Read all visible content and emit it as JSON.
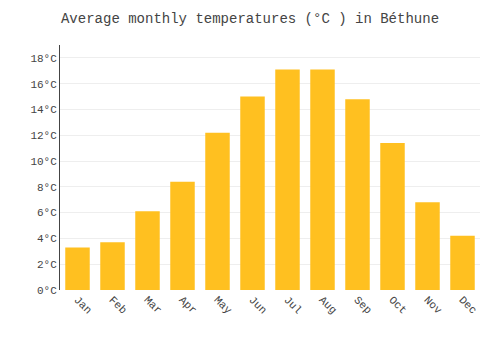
{
  "chart_data": {
    "type": "bar",
    "title": "Average monthly temperatures (°C ) in Béthune",
    "categories": [
      "Jan",
      "Feb",
      "Mar",
      "Apr",
      "May",
      "Jun",
      "Jul",
      "Aug",
      "Sep",
      "Oct",
      "Nov",
      "Dec"
    ],
    "values": [
      3.3,
      3.7,
      6.1,
      8.4,
      12.2,
      15.0,
      17.1,
      17.1,
      14.8,
      11.4,
      6.8,
      4.2
    ],
    "color": "#FFC020",
    "ylim": [
      0,
      19
    ],
    "yticks": [
      {
        "value": 0,
        "label": "0°C"
      },
      {
        "value": 2,
        "label": "2°C"
      },
      {
        "value": 4,
        "label": "4°C"
      },
      {
        "value": 6,
        "label": "6°C"
      },
      {
        "value": 8,
        "label": "8°C"
      },
      {
        "value": 10,
        "label": "10°C"
      },
      {
        "value": 12,
        "label": "12°C"
      },
      {
        "value": 14,
        "label": "14°C"
      },
      {
        "value": 16,
        "label": "16°C"
      },
      {
        "value": 18,
        "label": "18°C"
      }
    ],
    "grid": true
  }
}
